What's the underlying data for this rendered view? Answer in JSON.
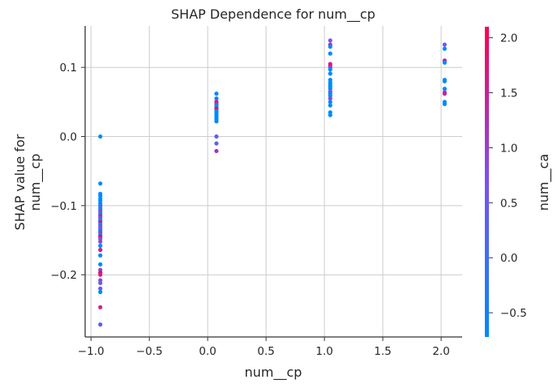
{
  "chart_data": {
    "type": "scatter",
    "title": "SHAP Dependence for num__cp",
    "xlabel": "num__cp",
    "ylabel": [
      "SHAP value for",
      "num__cp"
    ],
    "xlim": [
      -1.05,
      2.18
    ],
    "ylim": [
      -0.29,
      0.16
    ],
    "x_ticks": [
      -1.0,
      -0.5,
      0.0,
      0.5,
      1.0,
      1.5,
      2.0
    ],
    "x_tick_labels": [
      "−1.0",
      "−0.5",
      "0.0",
      "0.5",
      "1.0",
      "1.5",
      "2.0"
    ],
    "y_ticks": [
      -0.2,
      -0.1,
      0.0,
      0.1
    ],
    "y_tick_labels": [
      "−0.2",
      "−0.1",
      "0.0",
      "0.1"
    ],
    "grid": true,
    "colorbar": {
      "label": "num__ca",
      "range": [
        -0.72,
        2.1
      ],
      "ticks": [
        -0.5,
        0.0,
        0.5,
        1.0,
        1.5,
        2.0
      ],
      "tick_labels": [
        "−0.5",
        "0.0",
        "0.5",
        "1.0",
        "1.5",
        "2.0"
      ],
      "colors": [
        "#008afb",
        "#7c52f0",
        "#ff0052"
      ]
    },
    "points": [
      {
        "x": -0.92,
        "y": 0.0,
        "c": -0.72
      },
      {
        "x": -0.92,
        "y": -0.068,
        "c": -0.72
      },
      {
        "x": -0.92,
        "y": -0.083,
        "c": -0.72
      },
      {
        "x": -0.92,
        "y": -0.086,
        "c": -0.72
      },
      {
        "x": -0.92,
        "y": -0.09,
        "c": -0.72
      },
      {
        "x": -0.92,
        "y": -0.093,
        "c": -0.72
      },
      {
        "x": -0.92,
        "y": -0.097,
        "c": -0.72
      },
      {
        "x": -0.92,
        "y": -0.1,
        "c": -0.72
      },
      {
        "x": -0.92,
        "y": -0.103,
        "c": 0.3
      },
      {
        "x": -0.92,
        "y": -0.106,
        "c": -0.72
      },
      {
        "x": -0.92,
        "y": -0.109,
        "c": 0.9
      },
      {
        "x": -0.92,
        "y": -0.112,
        "c": -0.72
      },
      {
        "x": -0.92,
        "y": -0.115,
        "c": 1.5
      },
      {
        "x": -0.92,
        "y": -0.118,
        "c": 0.6
      },
      {
        "x": -0.92,
        "y": -0.121,
        "c": -0.72
      },
      {
        "x": -0.92,
        "y": -0.124,
        "c": 1.8
      },
      {
        "x": -0.92,
        "y": -0.127,
        "c": -0.72
      },
      {
        "x": -0.92,
        "y": -0.13,
        "c": 0.9
      },
      {
        "x": -0.92,
        "y": -0.133,
        "c": 0.3
      },
      {
        "x": -0.92,
        "y": -0.136,
        "c": -0.72
      },
      {
        "x": -0.92,
        "y": -0.139,
        "c": 1.2
      },
      {
        "x": -0.92,
        "y": -0.142,
        "c": -0.72
      },
      {
        "x": -0.92,
        "y": -0.145,
        "c": 2.0
      },
      {
        "x": -0.92,
        "y": -0.148,
        "c": 0.6
      },
      {
        "x": -0.92,
        "y": -0.152,
        "c": 0.9
      },
      {
        "x": -0.92,
        "y": -0.158,
        "c": -0.72
      },
      {
        "x": -0.92,
        "y": -0.164,
        "c": 1.5
      },
      {
        "x": -0.92,
        "y": -0.172,
        "c": -0.72
      },
      {
        "x": -0.92,
        "y": -0.185,
        "c": -0.72
      },
      {
        "x": -0.92,
        "y": -0.193,
        "c": 0.9
      },
      {
        "x": -0.92,
        "y": -0.197,
        "c": 2.0
      },
      {
        "x": -0.92,
        "y": -0.2,
        "c": 1.5
      },
      {
        "x": -0.92,
        "y": -0.208,
        "c": 0.9
      },
      {
        "x": -0.92,
        "y": -0.212,
        "c": 0.3
      },
      {
        "x": -0.92,
        "y": -0.22,
        "c": 0.6
      },
      {
        "x": -0.92,
        "y": -0.225,
        "c": -0.72
      },
      {
        "x": -0.92,
        "y": -0.247,
        "c": 1.5
      },
      {
        "x": -0.92,
        "y": -0.272,
        "c": 0.3
      },
      {
        "x": 0.075,
        "y": 0.062,
        "c": -0.72
      },
      {
        "x": 0.075,
        "y": 0.055,
        "c": -0.72
      },
      {
        "x": 0.075,
        "y": 0.05,
        "c": 1.8
      },
      {
        "x": 0.075,
        "y": 0.047,
        "c": 1.2
      },
      {
        "x": 0.075,
        "y": 0.045,
        "c": -0.72
      },
      {
        "x": 0.075,
        "y": 0.042,
        "c": -0.72
      },
      {
        "x": 0.075,
        "y": 0.04,
        "c": 2.0
      },
      {
        "x": 0.075,
        "y": 0.037,
        "c": -0.72
      },
      {
        "x": 0.075,
        "y": 0.034,
        "c": -0.72
      },
      {
        "x": 0.075,
        "y": 0.031,
        "c": -0.72
      },
      {
        "x": 0.075,
        "y": 0.028,
        "c": -0.72
      },
      {
        "x": 0.075,
        "y": 0.025,
        "c": -0.72
      },
      {
        "x": 0.075,
        "y": 0.022,
        "c": -0.72
      },
      {
        "x": 0.075,
        "y": 0.0,
        "c": 0.3
      },
      {
        "x": 0.075,
        "y": -0.01,
        "c": 0.3
      },
      {
        "x": 0.075,
        "y": -0.021,
        "c": 1.2
      },
      {
        "x": 1.05,
        "y": 0.139,
        "c": 0.6
      },
      {
        "x": 1.05,
        "y": 0.133,
        "c": 1.2
      },
      {
        "x": 1.05,
        "y": 0.13,
        "c": -0.72
      },
      {
        "x": 1.05,
        "y": 0.12,
        "c": -0.72
      },
      {
        "x": 1.05,
        "y": 0.105,
        "c": 1.5
      },
      {
        "x": 1.05,
        "y": 0.102,
        "c": 2.0
      },
      {
        "x": 1.05,
        "y": 0.1,
        "c": 0.9
      },
      {
        "x": 1.05,
        "y": 0.097,
        "c": -0.72
      },
      {
        "x": 1.05,
        "y": 0.091,
        "c": -0.72
      },
      {
        "x": 1.05,
        "y": 0.082,
        "c": -0.72
      },
      {
        "x": 1.05,
        "y": 0.078,
        "c": -0.72
      },
      {
        "x": 1.05,
        "y": 0.075,
        "c": -0.72
      },
      {
        "x": 1.05,
        "y": 0.072,
        "c": -0.72
      },
      {
        "x": 1.05,
        "y": 0.069,
        "c": -0.72
      },
      {
        "x": 1.05,
        "y": 0.065,
        "c": 0.6
      },
      {
        "x": 1.05,
        "y": 0.062,
        "c": -0.72
      },
      {
        "x": 1.05,
        "y": 0.059,
        "c": -0.72
      },
      {
        "x": 1.05,
        "y": 0.055,
        "c": 0.9
      },
      {
        "x": 1.05,
        "y": 0.05,
        "c": -0.72
      },
      {
        "x": 1.05,
        "y": 0.045,
        "c": -0.72
      },
      {
        "x": 1.05,
        "y": 0.035,
        "c": -0.72
      },
      {
        "x": 1.05,
        "y": 0.031,
        "c": -0.72
      },
      {
        "x": 2.03,
        "y": 0.133,
        "c": 0.6
      },
      {
        "x": 2.03,
        "y": 0.127,
        "c": -0.72
      },
      {
        "x": 2.03,
        "y": 0.11,
        "c": 1.5
      },
      {
        "x": 2.03,
        "y": 0.107,
        "c": -0.72
      },
      {
        "x": 2.03,
        "y": 0.082,
        "c": -0.72
      },
      {
        "x": 2.03,
        "y": 0.08,
        "c": -0.72
      },
      {
        "x": 2.03,
        "y": 0.069,
        "c": -0.72
      },
      {
        "x": 2.03,
        "y": 0.064,
        "c": 0.9
      },
      {
        "x": 2.03,
        "y": 0.062,
        "c": 1.5
      },
      {
        "x": 2.03,
        "y": 0.05,
        "c": -0.72
      },
      {
        "x": 2.03,
        "y": 0.047,
        "c": -0.72
      }
    ]
  }
}
